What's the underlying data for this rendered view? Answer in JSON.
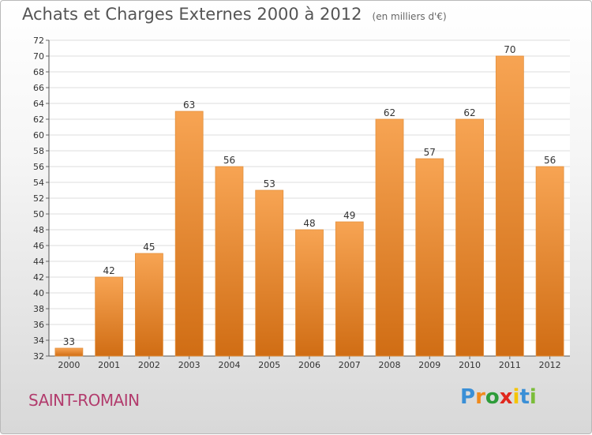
{
  "header": {
    "title": "Achats et Charges Externes 2000 à 2012",
    "unit": "(en milliers d'€)"
  },
  "footer": {
    "town": "SAINT-ROMAIN",
    "logo_letters": [
      "P",
      "r",
      "o",
      "x",
      "i",
      "t",
      "i"
    ],
    "logo_colors": [
      "#3a8fd6",
      "#f08a1c",
      "#2e9c3a",
      "#e0281e",
      "#f5c400",
      "#3a8fd6",
      "#7bbd3a"
    ]
  },
  "chart_data": {
    "type": "bar",
    "title": "Achats et Charges Externes 2000 à 2012",
    "categories": [
      "2000",
      "2001",
      "2002",
      "2003",
      "2004",
      "2005",
      "2006",
      "2007",
      "2008",
      "2009",
      "2010",
      "2011",
      "2012"
    ],
    "values": [
      33,
      42,
      45,
      63,
      56,
      53,
      48,
      49,
      62,
      57,
      62,
      70,
      56
    ],
    "ylim": [
      32,
      72
    ],
    "yticks": [
      32,
      34,
      36,
      38,
      40,
      42,
      44,
      46,
      48,
      50,
      52,
      54,
      56,
      58,
      60,
      62,
      64,
      66,
      68,
      70,
      72
    ],
    "grid": true,
    "bar_color_top": "#f7a453",
    "bar_color_bottom": "#d06d14"
  }
}
